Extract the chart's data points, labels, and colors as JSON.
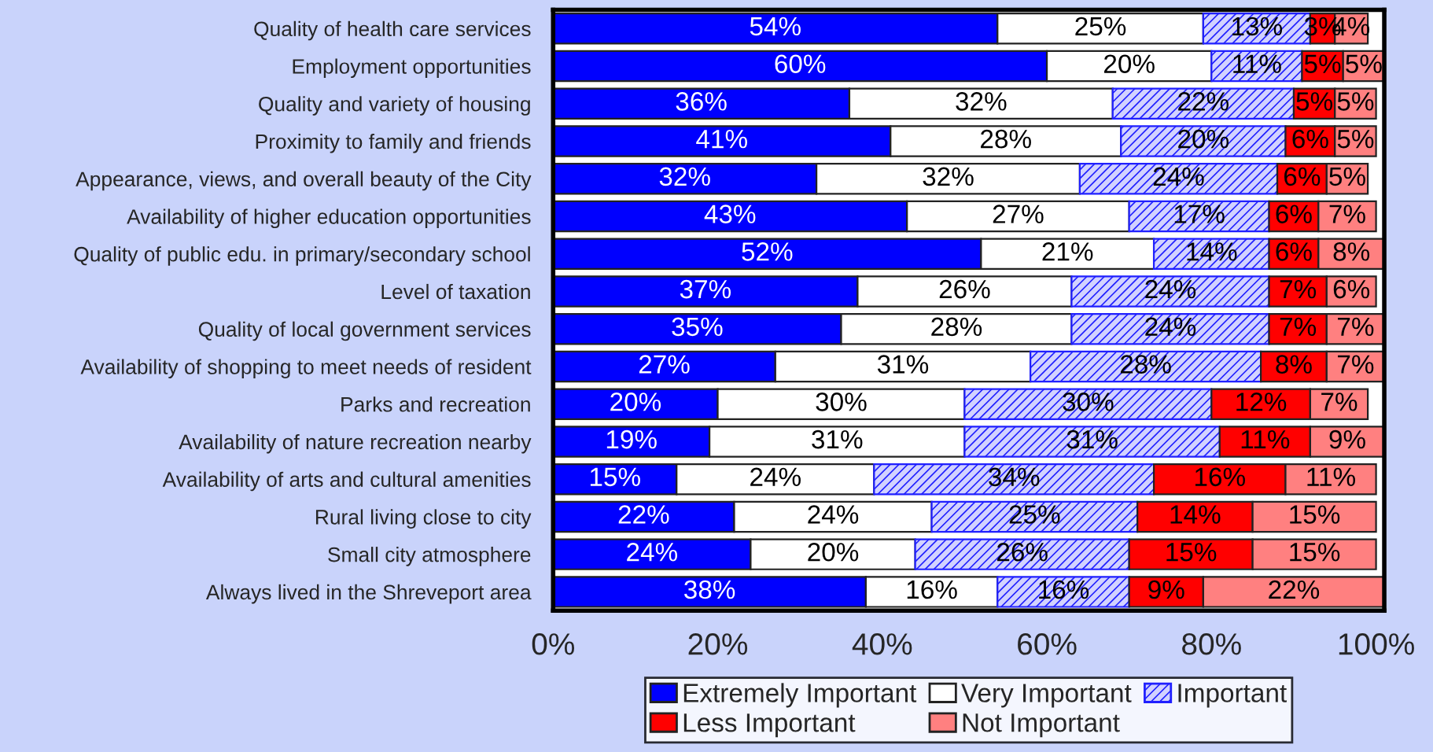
{
  "chart_data": {
    "type": "bar",
    "orientation": "horizontal",
    "stacked": true,
    "data_labels": true,
    "legend": "bottom",
    "grid": false,
    "categories": [
      "Quality of health care services",
      "Employment opportunities",
      "Quality and variety of housing",
      "Proximity to family and friends",
      "Appearance, views, and overall beauty of the City",
      "Availability of higher education opportunities",
      "Quality of public edu. in primary/secondary school",
      "Level of taxation",
      "Quality of local government services",
      "Availability of shopping to meet needs of resident",
      "Parks and recreation",
      "Availability of nature recreation nearby",
      "Availability of arts and cultural amenities",
      "Rural living close to city",
      "Small city atmosphere",
      "Always lived in the Shreveport area"
    ],
    "series": [
      {
        "name": "Extremely Important",
        "color": "#0000ff",
        "values": [
          54,
          60,
          36,
          41,
          32,
          43,
          52,
          37,
          35,
          27,
          20,
          19,
          15,
          22,
          24,
          38
        ],
        "value_labels": [
          "54%",
          "60%",
          "36%",
          "41%",
          "32%",
          "43%",
          "52%",
          "37%",
          "35%",
          "27%",
          "20%",
          "19%",
          "15%",
          "22%",
          "24%",
          "38%"
        ]
      },
      {
        "name": "Very Important",
        "color": "#ffffff",
        "values": [
          25,
          20,
          32,
          28,
          32,
          27,
          21,
          26,
          28,
          31,
          30,
          31,
          24,
          24,
          20,
          16
        ],
        "value_labels": [
          "25%",
          "20%",
          "32%",
          "28%",
          "32%",
          "27%",
          "21%",
          "26%",
          "28%",
          "31%",
          "30%",
          "31%",
          "24%",
          "24%",
          "20%",
          "16%"
        ]
      },
      {
        "name": "Important",
        "color": "#2020ff",
        "values": [
          13,
          11,
          22,
          20,
          24,
          17,
          14,
          24,
          24,
          28,
          30,
          31,
          34,
          25,
          26,
          16
        ],
        "value_labels": [
          "13%",
          "11%",
          "22%",
          "20%",
          "24%",
          "17%",
          "14%",
          "24%",
          "24%",
          "28%",
          "30%",
          "31%",
          "34%",
          "25%",
          "26%",
          "16%"
        ]
      },
      {
        "name": "Less Important",
        "color": "#ff0000",
        "values": [
          3,
          5,
          5,
          6,
          6,
          6,
          6,
          7,
          7,
          8,
          12,
          11,
          16,
          14,
          15,
          9
        ],
        "value_labels": [
          "3%",
          "5%",
          "5%",
          "6%",
          "6%",
          "6%",
          "6%",
          "7%",
          "7%",
          "8%",
          "12%",
          "11%",
          "16%",
          "14%",
          "15%",
          "9%"
        ]
      },
      {
        "name": "Not Important",
        "color": "#ff8080",
        "values": [
          4,
          5,
          5,
          5,
          5,
          7,
          8,
          6,
          7,
          7,
          7,
          9,
          11,
          15,
          15,
          22
        ],
        "value_labels": [
          "4%",
          "5%",
          "5%",
          "5%",
          "5%",
          "7%",
          "8%",
          "6%",
          "7%",
          "7%",
          "7%",
          "9%",
          "11%",
          "15%",
          "15%",
          "22%"
        ]
      }
    ],
    "xlim": [
      0,
      101
    ],
    "xticks": [
      {
        "value": 0,
        "label": "0%"
      },
      {
        "value": 20,
        "label": "20%"
      },
      {
        "value": 40,
        "label": "40%"
      },
      {
        "value": 60,
        "label": "60%"
      },
      {
        "value": 80,
        "label": "80%"
      },
      {
        "value": 100,
        "label": "100%"
      }
    ]
  }
}
